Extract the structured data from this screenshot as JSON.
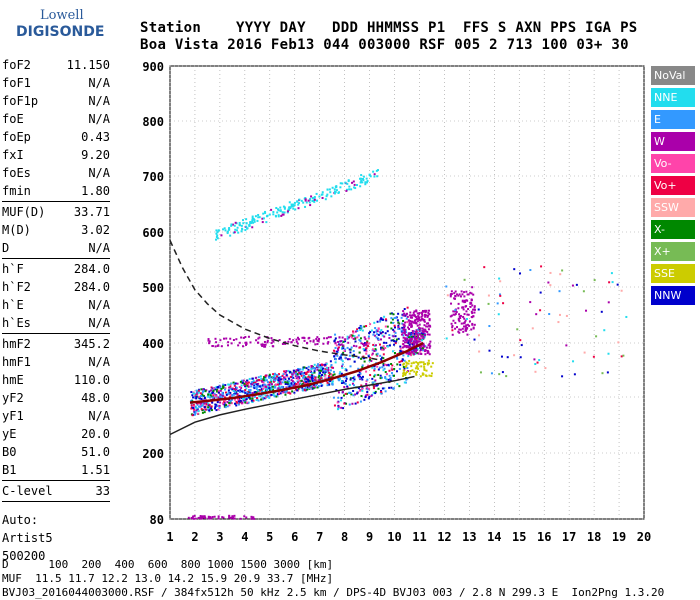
{
  "logo": {
    "line1": "Lowell",
    "line2": "DIGISONDE"
  },
  "header": {
    "labels": "Station    YYYY DAY   DDD HHMMSS P1  FFS S AXN PPS IGA PS",
    "values": "Boa Vista 2016 Feb13 044 003000 RSF 005 2 713 100 03+ 30"
  },
  "params": {
    "group1": [
      {
        "label": "foF2",
        "value": "11.150"
      },
      {
        "label": "foF1",
        "value": "N/A"
      },
      {
        "label": "foF1p",
        "value": "N/A"
      },
      {
        "label": "foE",
        "value": "N/A"
      },
      {
        "label": "foEp",
        "value": "0.43"
      },
      {
        "label": "fxI",
        "value": "9.20"
      },
      {
        "label": "foEs",
        "value": "N/A"
      },
      {
        "label": "fmin",
        "value": "1.80"
      }
    ],
    "group2": [
      {
        "label": "MUF(D)",
        "value": "33.71"
      },
      {
        "label": "M(D)",
        "value": "3.02"
      },
      {
        "label": "D",
        "value": "N/A"
      }
    ],
    "group3": [
      {
        "label": "h`F",
        "value": "284.0"
      },
      {
        "label": "h`F2",
        "value": "284.0"
      },
      {
        "label": "h`E",
        "value": "N/A"
      },
      {
        "label": "h`Es",
        "value": "N/A"
      }
    ],
    "group4": [
      {
        "label": "hmF2",
        "value": "345.2"
      },
      {
        "label": "hmF1",
        "value": "N/A"
      },
      {
        "label": "hmE",
        "value": "110.0"
      },
      {
        "label": "yF2",
        "value": "48.0"
      },
      {
        "label": "yF1",
        "value": "N/A"
      },
      {
        "label": "yE",
        "value": "20.0"
      },
      {
        "label": "B0",
        "value": "51.0"
      },
      {
        "label": "B1",
        "value": "1.51"
      }
    ],
    "group5": [
      {
        "label": "C-level",
        "value": "33"
      }
    ],
    "auto": [
      "Auto:",
      "Artist5",
      "500200"
    ]
  },
  "legend": [
    {
      "label": "NoVal",
      "color": "#888888"
    },
    {
      "label": "NNE",
      "color": "#22ddee"
    },
    {
      "label": "E",
      "color": "#3399ff"
    },
    {
      "label": "W",
      "color": "#aa00aa"
    },
    {
      "label": "Vo-",
      "color": "#ff44aa"
    },
    {
      "label": "Vo+",
      "color": "#ee0044"
    },
    {
      "label": "SSW",
      "color": "#ffaaaa"
    },
    {
      "label": "X-",
      "color": "#008800"
    },
    {
      "label": "X+",
      "color": "#77bb55"
    },
    {
      "label": "SSE",
      "color": "#cccc00"
    },
    {
      "label": "NNW",
      "color": "#0000cc"
    }
  ],
  "footer": {
    "line1": "D      100  200  400  600  800 1000 1500 3000 [km]",
    "line2": "MUF  11.5 11.7 12.2 13.0 14.2 15.9 20.9 33.7 [MHz]",
    "line3": "BVJ03_2016044003000.RSF / 384fx512h 50 kHz 2.5 km / DPS-4D BVJ03 003 / 2.8 N 299.3 E  Ion2Png 1.3.20"
  },
  "chart_data": {
    "type": "scatter",
    "title": "",
    "xlabel": "",
    "ylabel": "",
    "xlim": [
      1,
      20
    ],
    "ylim": [
      80,
      900
    ],
    "yscale": "nonlinear",
    "xticks": [
      1,
      2,
      3,
      4,
      5,
      6,
      7,
      8,
      9,
      10,
      11,
      12,
      13,
      14,
      15,
      16,
      17,
      18,
      19,
      20
    ],
    "yticks": [
      80,
      200,
      300,
      400,
      500,
      600,
      700,
      800,
      900
    ],
    "grid": true,
    "legend_position": "right",
    "curves": [
      {
        "name": "",
        "style": "solid-dark-red",
        "x": [
          1.8,
          2.5,
          3.5,
          4.5,
          5.5,
          6.5,
          7.5,
          8.5,
          9.5,
          10.5,
          11.15
        ],
        "y": [
          290,
          293,
          298,
          305,
          313,
          322,
          334,
          348,
          365,
          385,
          400
        ]
      },
      {
        "name": "",
        "style": "solid-black",
        "x": [
          1.0,
          2.0,
          3.0,
          4.0,
          5.0,
          6.0,
          7.0,
          8.0,
          9.0,
          10.0,
          10.8
        ],
        "y": [
          233,
          255,
          268,
          278,
          287,
          296,
          305,
          314,
          322,
          330,
          338
        ]
      },
      {
        "name": "",
        "style": "dashed-black",
        "x": [
          1.0,
          1.5,
          2.0,
          2.5,
          3.0,
          4.0,
          5.0,
          6.0,
          7.0,
          8.0,
          9.0,
          9.5
        ],
        "y": [
          585,
          535,
          495,
          470,
          450,
          425,
          408,
          395,
          385,
          378,
          372,
          368
        ]
      }
    ],
    "scatter_regions": [
      {
        "name": "O-trace",
        "x_range": [
          1.8,
          11.2
        ],
        "y_range": [
          285,
          410
        ]
      },
      {
        "name": "F2-multihop",
        "x_range": [
          3.0,
          9.5
        ],
        "y_range": [
          590,
          750
        ]
      },
      {
        "name": "F-spread",
        "x_range": [
          12.2,
          13.2
        ],
        "y_range": [
          420,
          500
        ]
      }
    ]
  }
}
